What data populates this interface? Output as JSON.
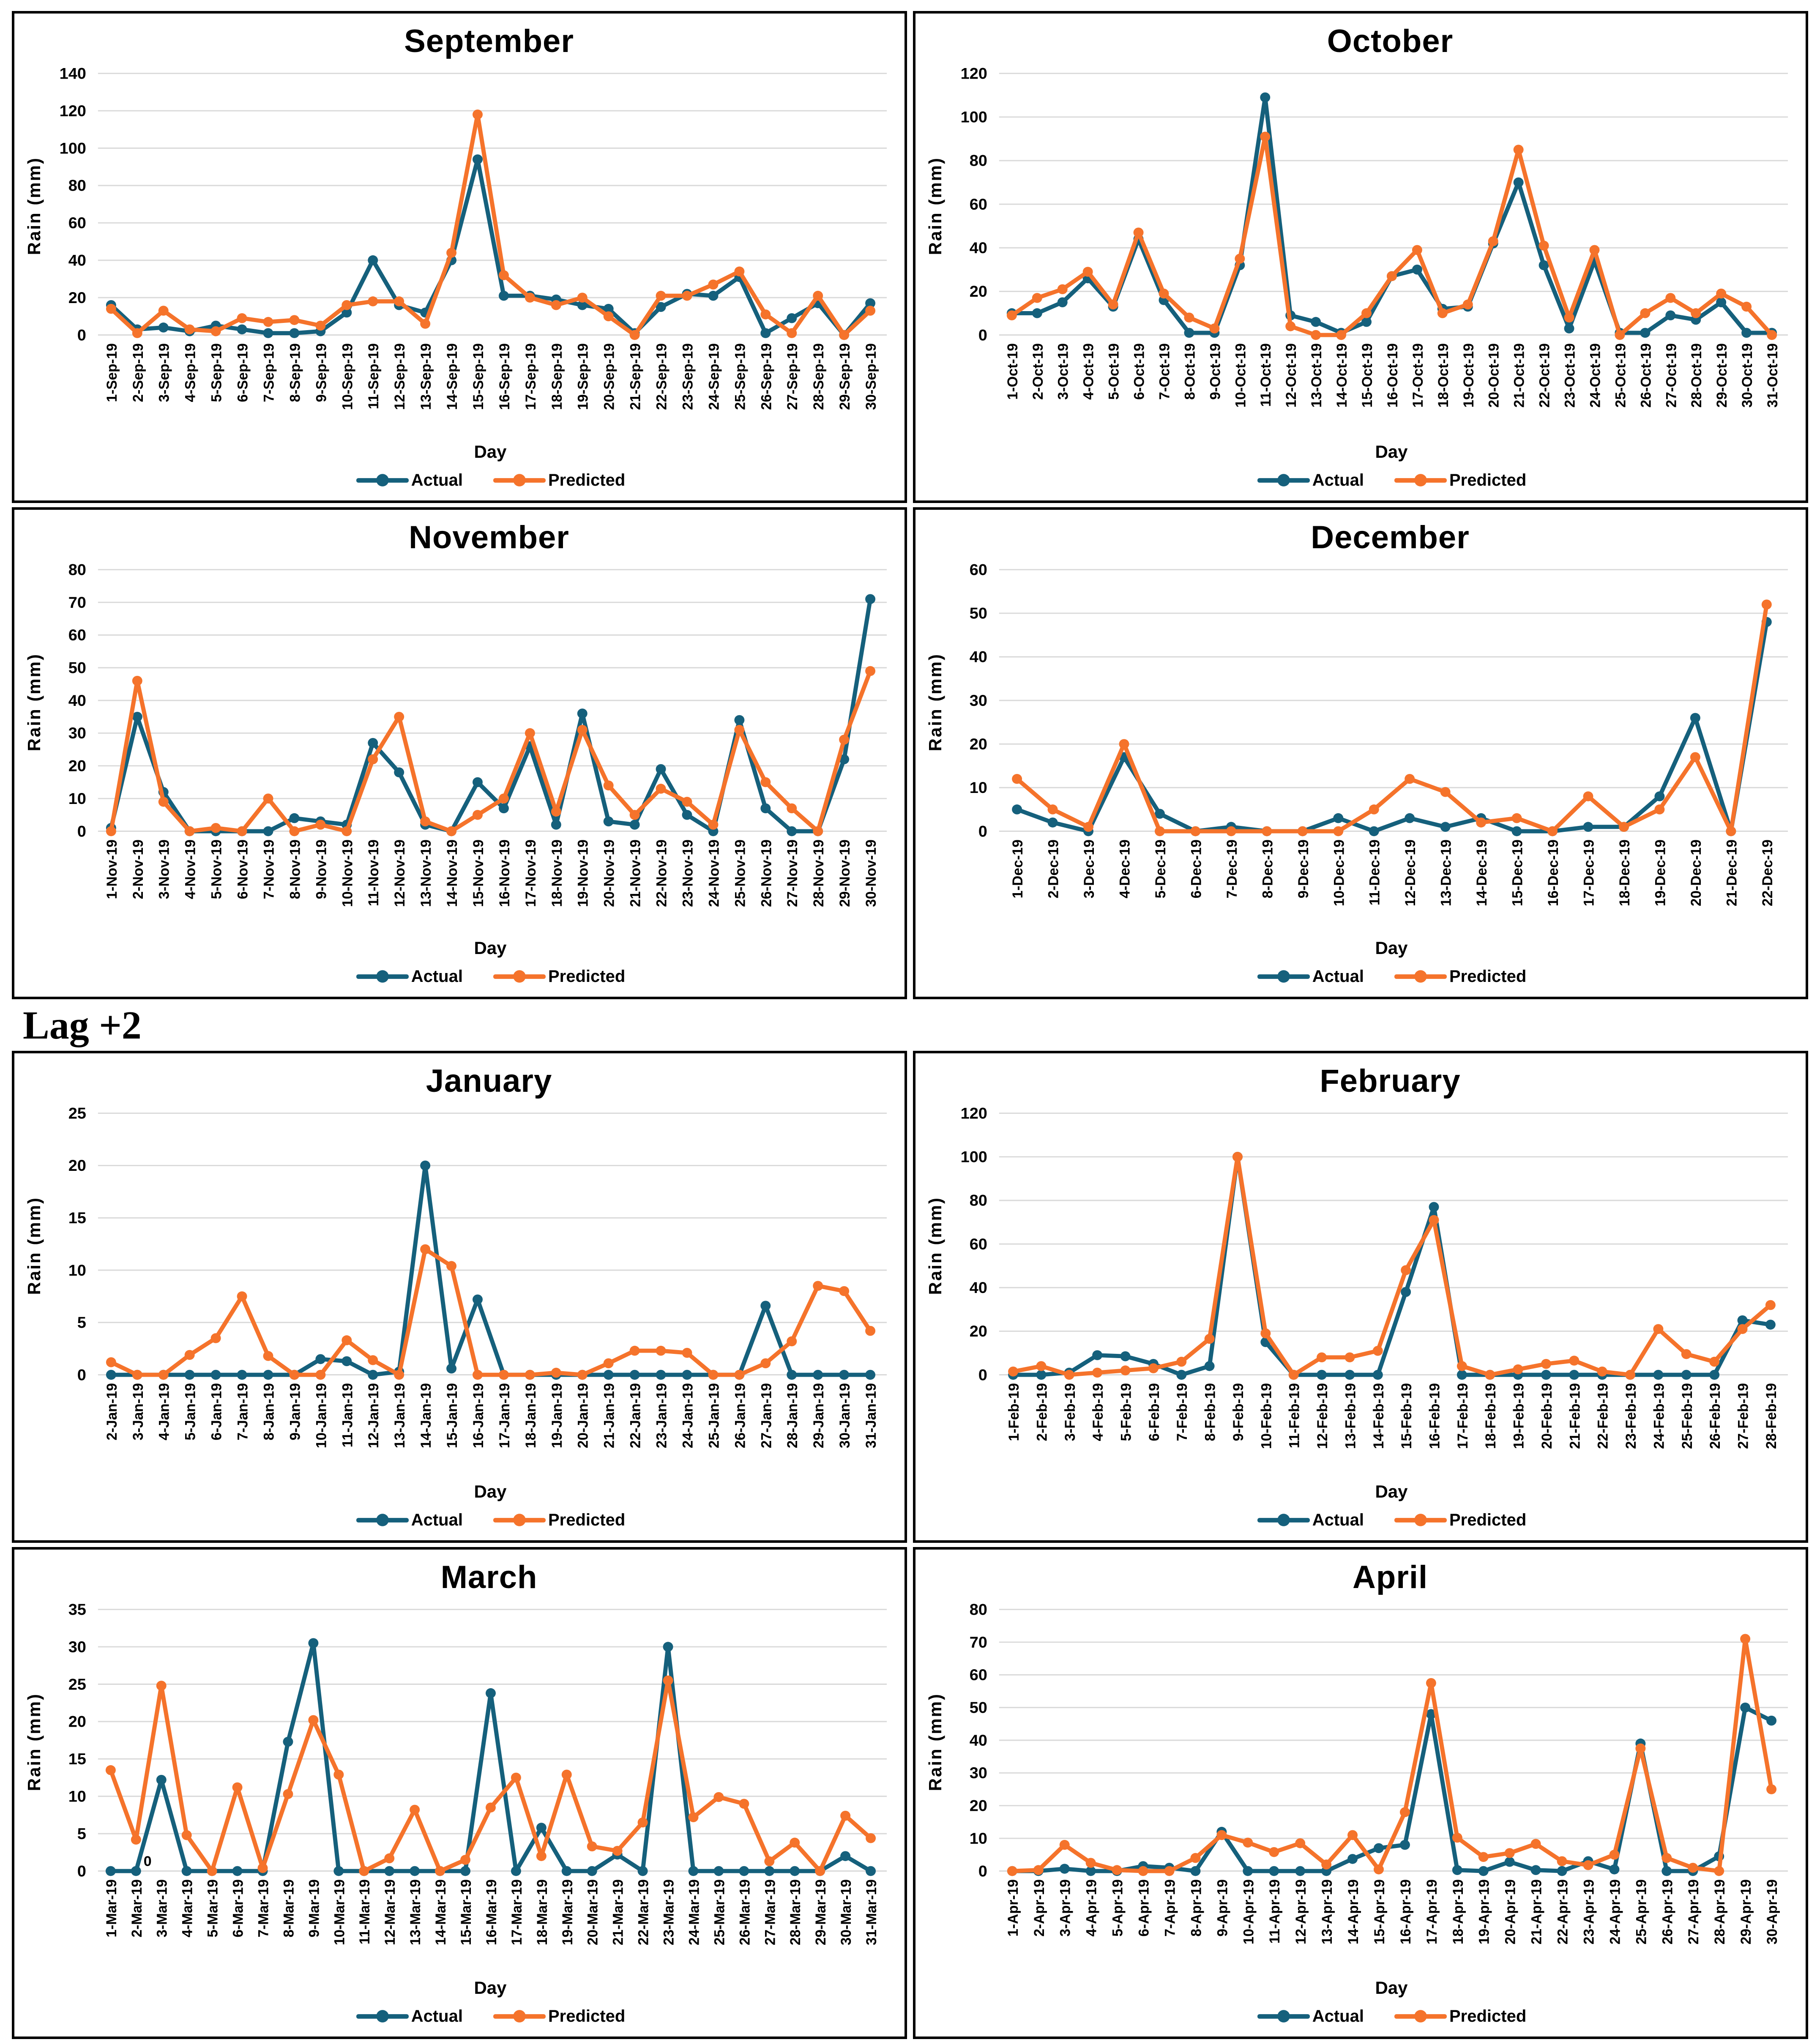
{
  "section_label": "Lag +2",
  "colors": {
    "actual": "#15607C",
    "predicted": "#F5732B",
    "grid": "#D9D9D9",
    "text": "#000000",
    "box_border": "#000000"
  },
  "chart_data": [
    {
      "type": "line",
      "title": "September",
      "xlabel": "Day",
      "ylabel": "Rain (mm)",
      "ylim": [
        0,
        140
      ],
      "ytick_step": 20,
      "grid": true,
      "legend_position": "bottom",
      "categories": [
        "1-Sep-19",
        "2-Sep-19",
        "3-Sep-19",
        "4-Sep-19",
        "5-Sep-19",
        "6-Sep-19",
        "7-Sep-19",
        "8-Sep-19",
        "9-Sep-19",
        "10-Sep-19",
        "11-Sep-19",
        "12-Sep-19",
        "13-Sep-19",
        "14-Sep-19",
        "15-Sep-19",
        "16-Sep-19",
        "17-Sep-19",
        "18-Sep-19",
        "19-Sep-19",
        "20-Sep-19",
        "21-Sep-19",
        "22-Sep-19",
        "23-Sep-19",
        "24-Sep-19",
        "25-Sep-19",
        "26-Sep-19",
        "27-Sep-19",
        "28-Sep-19",
        "29-Sep-19",
        "30-Sep-19"
      ],
      "series": [
        {
          "name": "Actual",
          "color_key": "actual",
          "values": [
            16,
            3,
            4,
            2,
            5,
            3,
            1,
            1,
            2,
            12,
            40,
            16,
            12,
            40,
            94,
            21,
            21,
            19,
            16,
            14,
            1,
            15,
            22,
            21,
            31,
            1,
            9,
            17,
            0,
            17
          ]
        },
        {
          "name": "Predicted",
          "color_key": "predicted",
          "values": [
            14,
            1,
            13,
            3,
            2,
            9,
            7,
            8,
            5,
            16,
            18,
            18,
            6,
            44,
            118,
            32,
            20,
            16,
            20,
            10,
            0,
            21,
            21,
            27,
            34,
            11,
            1,
            21,
            0,
            13
          ]
        }
      ]
    },
    {
      "type": "line",
      "title": "October",
      "xlabel": "Day",
      "ylabel": "Rain (mm)",
      "ylim": [
        0,
        120
      ],
      "ytick_step": 20,
      "grid": true,
      "legend_position": "bottom",
      "categories": [
        "1-Oct-19",
        "2-Oct-19",
        "3-Oct-19",
        "4-Oct-19",
        "5-Oct-19",
        "6-Oct-19",
        "7-Oct-19",
        "8-Oct-19",
        "9-Oct-19",
        "10-Oct-19",
        "11-Oct-19",
        "12-Oct-19",
        "13-Oct-19",
        "14-Oct-19",
        "15-Oct-19",
        "16-Oct-19",
        "17-Oct-19",
        "18-Oct-19",
        "19-Oct-19",
        "20-Oct-19",
        "21-Oct-19",
        "22-Oct-19",
        "23-Oct-19",
        "24-Oct-19",
        "25-Oct-19",
        "26-Oct-19",
        "27-Oct-19",
        "28-Oct-19",
        "29-Oct-19",
        "30-Oct-19",
        "31-Oct-19"
      ],
      "series": [
        {
          "name": "Actual",
          "color_key": "actual",
          "values": [
            10,
            10,
            15,
            26,
            13,
            44,
            16,
            1,
            1,
            32,
            109,
            9,
            6,
            1,
            6,
            27,
            30,
            12,
            13,
            42,
            70,
            32,
            3,
            34,
            1,
            1,
            9,
            7,
            15,
            1,
            1
          ]
        },
        {
          "name": "Predicted",
          "color_key": "predicted",
          "values": [
            9,
            17,
            21,
            29,
            14,
            47,
            19,
            8,
            3,
            35,
            91,
            4,
            0,
            0,
            10,
            27,
            39,
            10,
            14,
            43,
            85,
            41,
            8,
            39,
            0,
            10,
            17,
            10,
            19,
            13,
            0
          ]
        }
      ]
    },
    {
      "type": "line",
      "title": "November",
      "xlabel": "Day",
      "ylabel": "Rain (mm)",
      "ylim": [
        0,
        80
      ],
      "ytick_step": 10,
      "grid": true,
      "legend_position": "bottom",
      "categories": [
        "1-Nov-19",
        "2-Nov-19",
        "3-Nov-19",
        "4-Nov-19",
        "5-Nov-19",
        "6-Nov-19",
        "7-Nov-19",
        "8-Nov-19",
        "9-Nov-19",
        "10-Nov-19",
        "11-Nov-19",
        "12-Nov-19",
        "13-Nov-19",
        "14-Nov-19",
        "15-Nov-19",
        "16-Nov-19",
        "17-Nov-19",
        "18-Nov-19",
        "19-Nov-19",
        "20-Nov-19",
        "21-Nov-19",
        "22-Nov-19",
        "23-Nov-19",
        "24-Nov-19",
        "25-Nov-19",
        "26-Nov-19",
        "27-Nov-19",
        "28-Nov-19",
        "29-Nov-19",
        "30-Nov-19"
      ],
      "series": [
        {
          "name": "Actual",
          "color_key": "actual",
          "values": [
            1,
            35,
            12,
            0,
            0,
            0,
            0,
            4,
            3,
            2,
            27,
            18,
            2,
            0,
            15,
            7,
            26,
            2,
            36,
            3,
            2,
            19,
            5,
            0,
            34,
            7,
            0,
            0,
            22,
            71
          ]
        },
        {
          "name": "Predicted",
          "color_key": "predicted",
          "values": [
            0,
            46,
            9,
            0,
            1,
            0,
            10,
            0,
            2,
            0,
            22,
            35,
            3,
            0,
            5,
            10,
            30,
            6,
            31,
            14,
            5,
            13,
            9,
            2,
            31,
            15,
            7,
            0,
            28,
            49
          ]
        }
      ]
    },
    {
      "type": "line",
      "title": "December",
      "xlabel": "Day",
      "ylabel": "Rain (mm)",
      "ylim": [
        0,
        60
      ],
      "ytick_step": 10,
      "grid": true,
      "legend_position": "bottom",
      "categories": [
        "1-Dec-19",
        "2-Dec-19",
        "3-Dec-19",
        "4-Dec-19",
        "5-Dec-19",
        "6-Dec-19",
        "7-Dec-19",
        "8-Dec-19",
        "9-Dec-19",
        "10-Dec-19",
        "11-Dec-19",
        "12-Dec-19",
        "13-Dec-19",
        "14-Dec-19",
        "15-Dec-19",
        "16-Dec-19",
        "17-Dec-19",
        "18-Dec-19",
        "19-Dec-19",
        "20-Dec-19",
        "21-Dec-19",
        "22-Dec-19"
      ],
      "series": [
        {
          "name": "Actual",
          "color_key": "actual",
          "values": [
            5,
            2,
            0,
            17,
            4,
            0,
            1,
            0,
            0,
            3,
            0,
            3,
            1,
            3,
            0,
            0,
            1,
            1,
            8,
            26,
            0,
            48
          ]
        },
        {
          "name": "Predicted",
          "color_key": "predicted",
          "values": [
            12,
            5,
            1,
            20,
            0,
            0,
            0,
            0,
            0,
            0,
            5,
            12,
            9,
            2,
            3,
            0,
            8,
            1,
            5,
            17,
            0,
            52
          ]
        }
      ]
    },
    {
      "type": "line",
      "title": "January",
      "xlabel": "Day",
      "ylabel": "Rain (mm)",
      "ylim": [
        0,
        25
      ],
      "ytick_step": 5,
      "grid": true,
      "legend_position": "bottom",
      "categories": [
        "2-Jan-19",
        "3-Jan-19",
        "4-Jan-19",
        "5-Jan-19",
        "6-Jan-19",
        "7-Jan-19",
        "8-Jan-19",
        "9-Jan-19",
        "10-Jan-19",
        "11-Jan-19",
        "12-Jan-19",
        "13-Jan-19",
        "14-Jan-19",
        "15-Jan-19",
        "16-Jan-19",
        "17-Jan-19",
        "18-Jan-19",
        "19-Jan-19",
        "20-Jan-19",
        "21-Jan-19",
        "22-Jan-19",
        "23-Jan-19",
        "24-Jan-19",
        "25-Jan-19",
        "26-Jan-19",
        "27-Jan-19",
        "28-Jan-19",
        "29-Jan-19",
        "30-Jan-19",
        "31-Jan-19"
      ],
      "series": [
        {
          "name": "Actual",
          "color_key": "actual",
          "values": [
            0,
            0,
            0,
            0,
            0,
            0,
            0,
            0,
            1.5,
            1.3,
            0,
            0.3,
            20,
            0.6,
            7.2,
            0,
            0,
            0,
            0,
            0,
            0,
            0,
            0,
            0,
            0,
            6.6,
            0,
            0,
            0,
            0
          ]
        },
        {
          "name": "Predicted",
          "color_key": "predicted",
          "values": [
            1.2,
            0,
            0,
            1.9,
            3.5,
            7.5,
            1.8,
            0,
            0,
            3.3,
            1.4,
            0,
            12,
            10.4,
            0,
            0,
            0,
            0.2,
            0,
            1.1,
            2.3,
            2.3,
            2.1,
            0,
            0,
            1.1,
            3.2,
            8.5,
            8,
            4.2
          ]
        }
      ]
    },
    {
      "type": "line",
      "title": "February",
      "xlabel": "Day",
      "ylabel": "Rain (mm)",
      "ylim": [
        0,
        120
      ],
      "ytick_step": 20,
      "grid": true,
      "legend_position": "bottom",
      "categories": [
        "1-Feb-19",
        "2-Feb-19",
        "3-Feb-19",
        "4-Feb-19",
        "5-Feb-19",
        "6-Feb-19",
        "7-Feb-19",
        "8-Feb-19",
        "9-Feb-19",
        "10-Feb-19",
        "11-Feb-19",
        "12-Feb-19",
        "13-Feb-19",
        "14-Feb-19",
        "15-Feb-19",
        "16-Feb-19",
        "17-Feb-19",
        "18-Feb-19",
        "19-Feb-19",
        "20-Feb-19",
        "21-Feb-19",
        "22-Feb-19",
        "23-Feb-19",
        "24-Feb-19",
        "25-Feb-19",
        "26-Feb-19",
        "27-Feb-19",
        "28-Feb-19"
      ],
      "series": [
        {
          "name": "Actual",
          "color_key": "actual",
          "values": [
            0,
            0,
            1,
            9,
            8.5,
            5,
            0,
            4,
            100,
            15,
            0,
            0,
            0,
            0,
            38,
            77,
            0,
            0,
            0,
            0,
            0,
            0,
            0,
            0,
            0,
            0,
            25,
            23
          ]
        },
        {
          "name": "Predicted",
          "color_key": "predicted",
          "values": [
            1.5,
            4,
            0,
            1,
            2,
            3,
            6,
            16.5,
            100,
            19,
            0,
            8,
            8,
            11,
            48,
            71,
            4,
            0,
            2.5,
            5,
            6.5,
            1.5,
            0,
            21,
            9.5,
            6,
            21,
            32
          ]
        }
      ]
    },
    {
      "type": "line",
      "title": "March",
      "xlabel": "Day",
      "ylabel": "Rain (mm)",
      "ylim": [
        0,
        35
      ],
      "ytick_step": 5,
      "grid": true,
      "legend_position": "bottom",
      "point_label": {
        "series": "Actual",
        "index": 1,
        "text": "0"
      },
      "categories": [
        "1-Mar-19",
        "2-Mar-19",
        "3-Mar-19",
        "4-Mar-19",
        "5-Mar-19",
        "6-Mar-19",
        "7-Mar-19",
        "8-Mar-19",
        "9-Mar-19",
        "10-Mar-19",
        "11-Mar-19",
        "12-Mar-19",
        "13-Mar-19",
        "14-Mar-19",
        "15-Mar-19",
        "16-Mar-19",
        "17-Mar-19",
        "18-Mar-19",
        "19-Mar-19",
        "20-Mar-19",
        "21-Mar-19",
        "22-Mar-19",
        "23-Mar-19",
        "24-Mar-19",
        "25-Mar-19",
        "26-Mar-19",
        "27-Mar-19",
        "28-Mar-19",
        "29-Mar-19",
        "30-Mar-19",
        "31-Mar-19"
      ],
      "series": [
        {
          "name": "Actual",
          "color_key": "actual",
          "values": [
            0,
            0,
            12.2,
            0,
            0,
            0,
            0,
            17.3,
            30.5,
            0,
            0,
            0,
            0,
            0,
            0,
            23.8,
            0,
            5.8,
            0,
            0,
            2.2,
            0,
            30,
            0,
            0,
            0,
            0,
            0,
            0,
            2,
            0
          ]
        },
        {
          "name": "Predicted",
          "color_key": "predicted",
          "values": [
            13.5,
            4.2,
            24.8,
            4.8,
            0,
            11.2,
            0.4,
            10.3,
            20.2,
            12.9,
            0,
            1.7,
            8.2,
            0,
            1.5,
            8.5,
            12.5,
            2,
            12.9,
            3.3,
            2.7,
            6.5,
            25.5,
            7.2,
            9.9,
            9,
            1.3,
            3.8,
            0,
            7.4,
            4.4
          ]
        }
      ]
    },
    {
      "type": "line",
      "title": "April",
      "xlabel": "Day",
      "ylabel": "Rain (mm)",
      "ylim": [
        0,
        80
      ],
      "ytick_step": 10,
      "grid": true,
      "legend_position": "bottom",
      "categories": [
        "1-Apr-19",
        "2-Apr-19",
        "3-Apr-19",
        "4-Apr-19",
        "5-Apr-19",
        "6-Apr-19",
        "7-Apr-19",
        "8-Apr-19",
        "9-Apr-19",
        "10-Apr-19",
        "11-Apr-19",
        "12-Apr-19",
        "13-Apr-19",
        "14-Apr-19",
        "15-Apr-19",
        "16-Apr-19",
        "17-Apr-19",
        "18-Apr-19",
        "19-Apr-19",
        "20-Apr-19",
        "21-Apr-19",
        "22-Apr-19",
        "23-Apr-19",
        "24-Apr-19",
        "25-Apr-19",
        "26-Apr-19",
        "27-Apr-19",
        "28-Apr-19",
        "29-Apr-19",
        "30-Apr-19"
      ],
      "series": [
        {
          "name": "Actual",
          "color_key": "actual",
          "values": [
            0,
            0,
            0.7,
            0,
            0,
            1.5,
            1,
            0,
            12,
            0,
            0,
            0,
            0,
            3.7,
            7,
            8,
            48,
            0.3,
            0,
            2.8,
            0.3,
            0,
            3,
            0.5,
            39,
            0,
            0,
            4.5,
            50,
            46
          ]
        },
        {
          "name": "Predicted",
          "color_key": "predicted",
          "values": [
            0,
            0.3,
            8,
            2.5,
            0.3,
            0,
            0,
            4,
            11,
            8.7,
            5.8,
            8.5,
            2,
            11,
            0.5,
            18,
            57.5,
            10.2,
            4.3,
            5.5,
            8.3,
            3,
            1.8,
            5,
            37.5,
            4,
            1,
            0,
            71,
            25
          ]
        }
      ]
    }
  ]
}
